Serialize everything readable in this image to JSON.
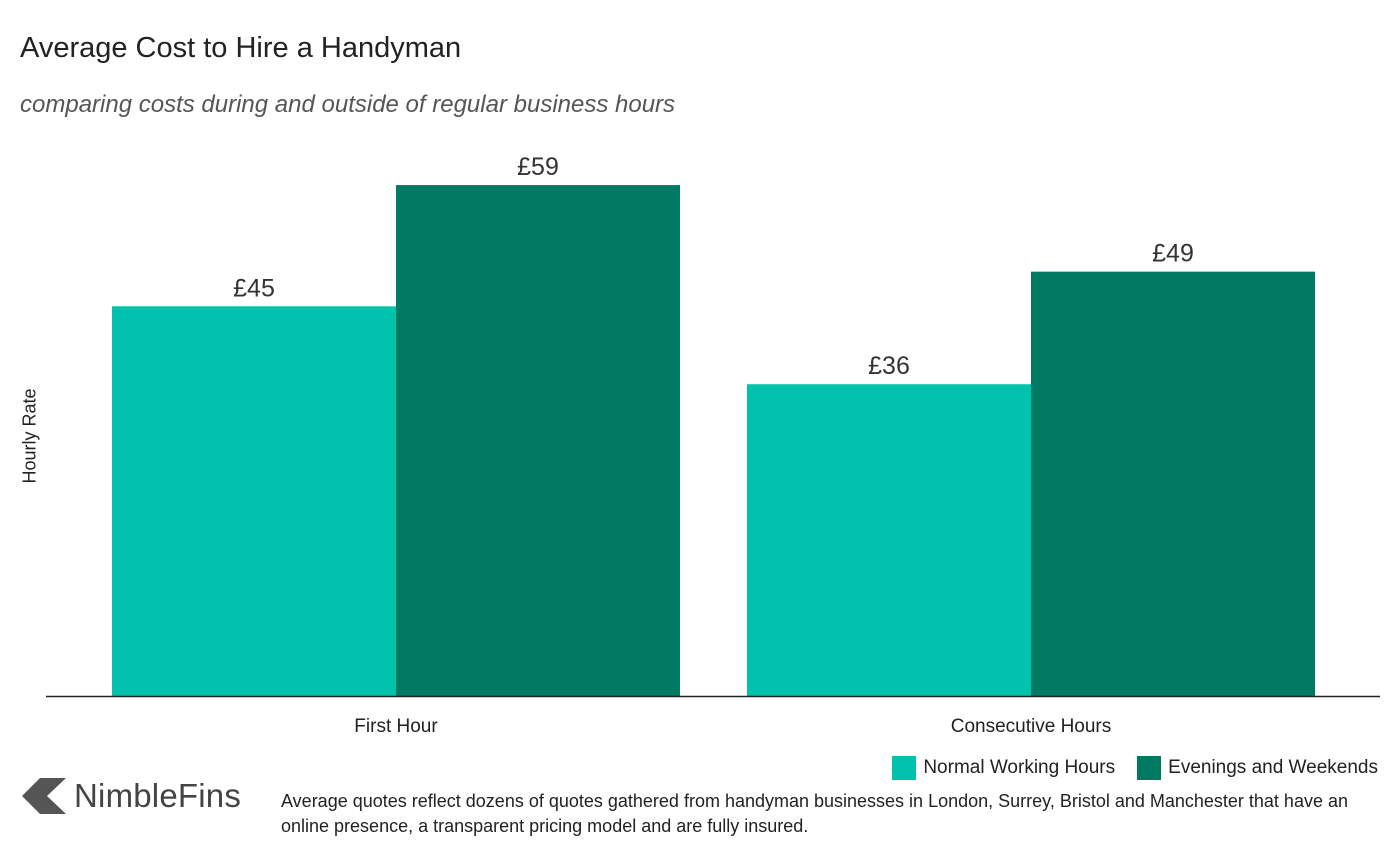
{
  "title": "Average Cost to Hire a Handyman",
  "subtitle": "comparing costs during and outside of regular business hours",
  "brand": {
    "name": "NimbleFins",
    "logo_icon": "chevron-left-logo"
  },
  "footnote": "Average quotes reflect dozens of quotes gathered from handyman businesses in London, Surrey, Bristol and Manchester that have an online presence, a transparent pricing model and are fully insured.",
  "colors": {
    "normal": "#00c2ad",
    "evenings": "#007a62",
    "axis": "#222222",
    "logo": "#555555"
  },
  "chart_data": {
    "type": "bar",
    "title": "Average Cost to Hire a Handyman",
    "subtitle": "comparing costs during and outside of regular business hours",
    "xlabel": "",
    "ylabel": "Hourly Rate",
    "categories": [
      "First Hour",
      "Consecutive Hours"
    ],
    "series": [
      {
        "name": "Normal Working Hours",
        "values": [
          45,
          36
        ],
        "labels": [
          "£45",
          "£36"
        ],
        "color": "#00c2ad"
      },
      {
        "name": "Evenings and Weekends",
        "values": [
          59,
          49
        ],
        "labels": [
          "£59",
          "£49"
        ],
        "color": "#007a62"
      }
    ],
    "ylim": [
      0,
      62
    ],
    "grid": false,
    "legend_position": "bottom-right",
    "value_labels": true
  }
}
